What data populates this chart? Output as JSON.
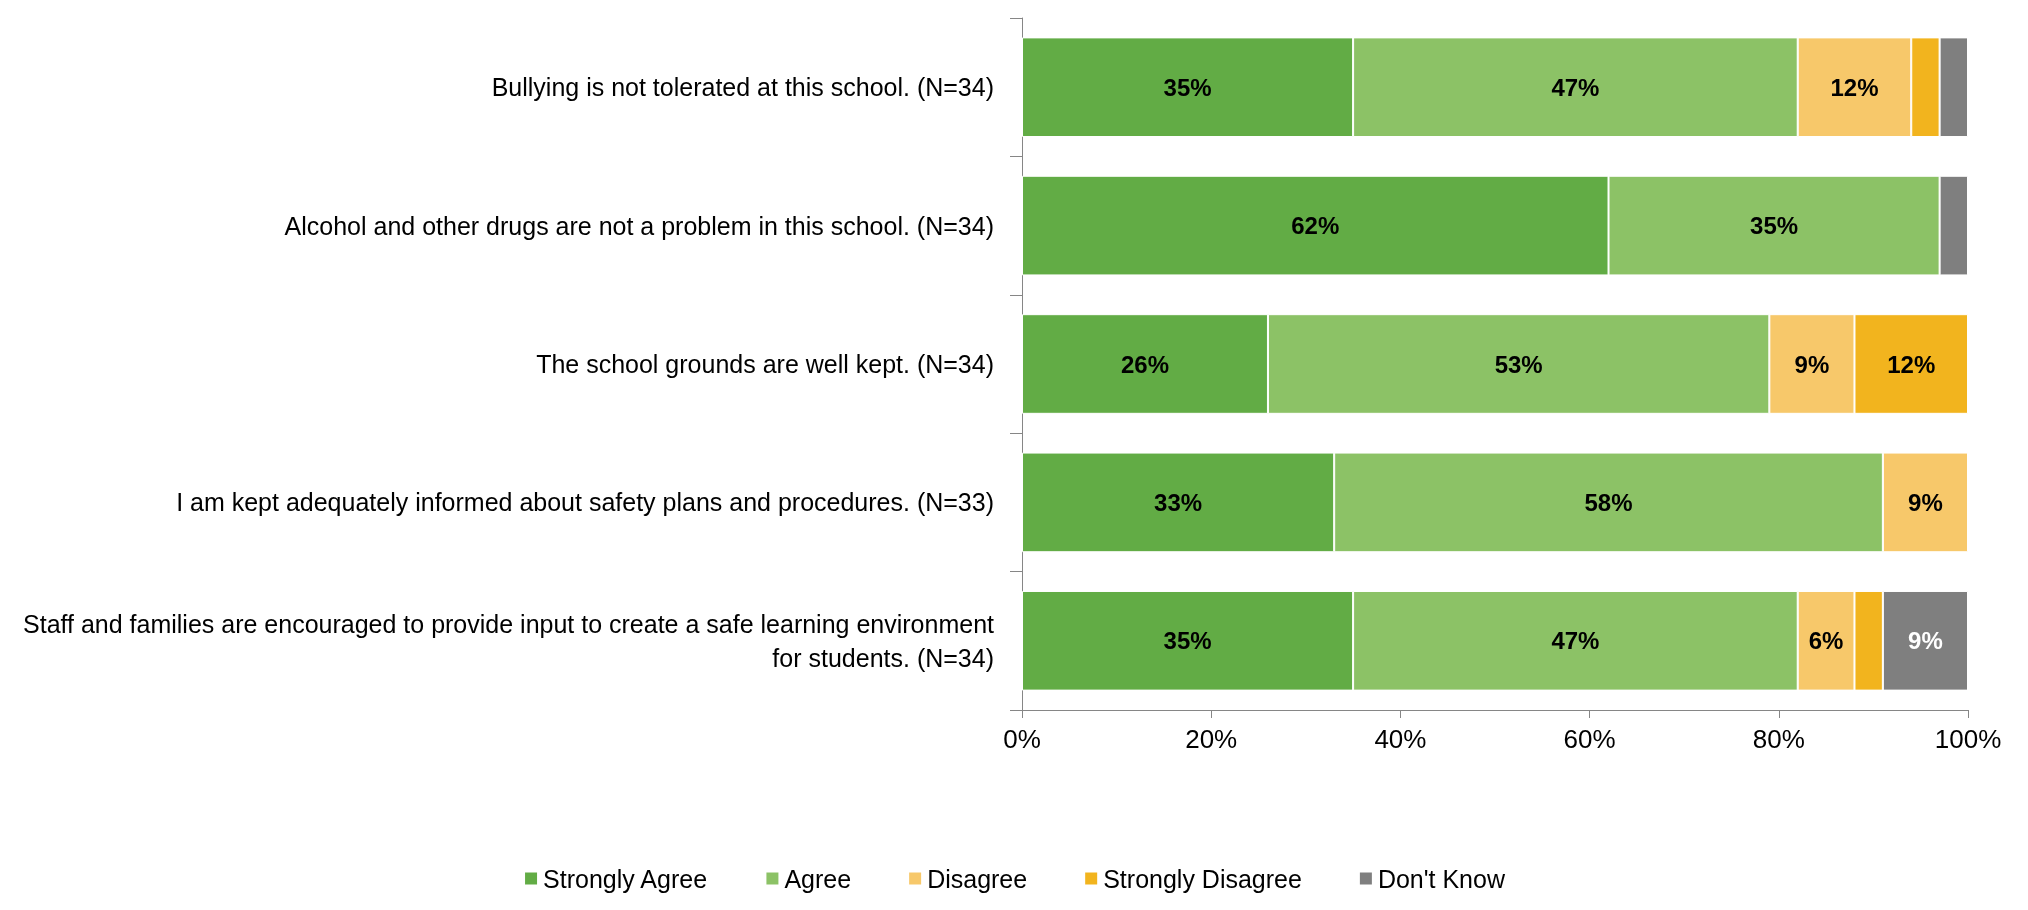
{
  "chart_data": {
    "type": "bar",
    "orientation": "horizontal",
    "stacked": true,
    "categories": [
      "Bullying is not tolerated at this school. (N=34)",
      "Alcohol and other drugs are not a problem in this school. (N=34)",
      "The school grounds are well kept. (N=34)",
      "I am kept adequately informed about safety plans and procedures. (N=33)",
      "Staff and families are encouraged to provide input to create a safe learning environment for students. (N=34)"
    ],
    "series": [
      {
        "name": "Strongly Agree",
        "color": "#62ac45",
        "values": [
          35,
          62,
          26,
          33,
          35
        ],
        "value_labels": [
          "35%",
          "62%",
          "26%",
          "33%",
          "35%"
        ]
      },
      {
        "name": "Agree",
        "color": "#8cc266",
        "values": [
          47,
          35,
          53,
          58,
          47
        ],
        "value_labels": [
          "47%",
          "35%",
          "53%",
          "58%",
          "47%"
        ]
      },
      {
        "name": "Disagree",
        "color": "#f7c86a",
        "values": [
          12,
          null,
          9,
          9,
          6
        ],
        "value_labels": [
          "12%",
          null,
          "9%",
          "9%",
          "6%"
        ]
      },
      {
        "name": "Strongly Disagree",
        "color": "#f2b41e",
        "values": [
          3,
          null,
          12,
          null,
          3
        ],
        "value_labels": [
          null,
          null,
          "12%",
          null,
          null
        ]
      },
      {
        "name": "Don't Know",
        "color": "#7f7f7f",
        "values": [
          3,
          3,
          null,
          null,
          9
        ],
        "value_labels": [
          null,
          null,
          null,
          null,
          "9%"
        ]
      }
    ],
    "xlim": [
      0,
      100
    ],
    "xticks": [
      {
        "value": 0,
        "label": "0%"
      },
      {
        "value": 20,
        "label": "20%"
      },
      {
        "value": 40,
        "label": "40%"
      },
      {
        "value": 60,
        "label": "60%"
      },
      {
        "value": 80,
        "label": "80%"
      },
      {
        "value": 100,
        "label": "100%"
      }
    ],
    "grid": false,
    "legend": "bottom"
  }
}
